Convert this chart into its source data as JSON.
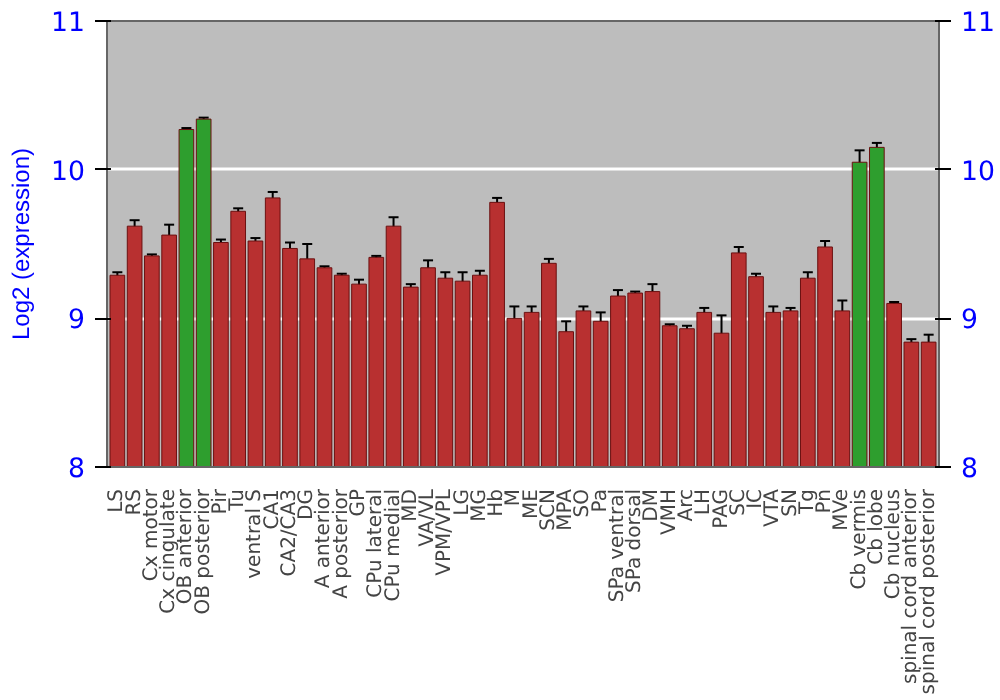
{
  "chart_data": {
    "type": "bar",
    "ylabel": "Log2 (expression)",
    "categories": [
      "LS",
      "RS",
      "Cx motor",
      "Cx cingulate",
      "OB anterior",
      "OB posterior",
      "Pir",
      "Tu",
      "ventral S",
      "CA1",
      "CA2/CA3",
      "DG",
      "A anterior",
      "A posterior",
      "GP",
      "CPu lateral",
      "CPu medial",
      "MD",
      "VA/VL",
      "VPM/VPL",
      "LG",
      "MG",
      "Hb",
      "M",
      "ME",
      "SCN",
      "MPA",
      "SO",
      "Pa",
      "SPa ventral",
      "SPa dorsal",
      "DM",
      "VMH",
      "Arc",
      "LH",
      "PAG",
      "SC",
      "IC",
      "VTA",
      "SN",
      "Tg",
      "Pn",
      "MVe",
      "Cb vermis",
      "Cb lobe",
      "Cb nucleus",
      "spinal cord anterior",
      "spinal cord posterior"
    ],
    "values": [
      9.29,
      9.62,
      9.42,
      9.56,
      10.27,
      10.34,
      9.51,
      9.72,
      9.52,
      9.81,
      9.47,
      9.4,
      9.34,
      9.29,
      9.23,
      9.41,
      9.62,
      9.21,
      9.34,
      9.27,
      9.25,
      9.29,
      9.78,
      9.0,
      9.04,
      9.37,
      8.91,
      9.05,
      8.98,
      9.15,
      9.17,
      9.18,
      8.95,
      8.93,
      9.04,
      8.9,
      9.44,
      9.28,
      9.04,
      9.05,
      9.27,
      9.48,
      9.05,
      10.05,
      10.15,
      9.1,
      8.84,
      8.84
    ],
    "errors": [
      0.02,
      0.04,
      0.01,
      0.07,
      0.01,
      0.01,
      0.02,
      0.02,
      0.02,
      0.04,
      0.04,
      0.1,
      0.01,
      0.01,
      0.03,
      0.01,
      0.06,
      0.02,
      0.05,
      0.04,
      0.06,
      0.03,
      0.03,
      0.08,
      0.04,
      0.03,
      0.07,
      0.03,
      0.06,
      0.04,
      0.01,
      0.05,
      0.01,
      0.02,
      0.03,
      0.12,
      0.04,
      0.02,
      0.04,
      0.02,
      0.04,
      0.04,
      0.07,
      0.08,
      0.03,
      0.01,
      0.02,
      0.05
    ],
    "colors": [
      "#b83030",
      "#b83030",
      "#b83030",
      "#b83030",
      "#2e9e2e",
      "#2e9e2e",
      "#b83030",
      "#b83030",
      "#b83030",
      "#b83030",
      "#b83030",
      "#b83030",
      "#b83030",
      "#b83030",
      "#b83030",
      "#b83030",
      "#b83030",
      "#b83030",
      "#b83030",
      "#b83030",
      "#b83030",
      "#b83030",
      "#b83030",
      "#b83030",
      "#b83030",
      "#b83030",
      "#b83030",
      "#b83030",
      "#b83030",
      "#b83030",
      "#b83030",
      "#b83030",
      "#b83030",
      "#b83030",
      "#b83030",
      "#b83030",
      "#b83030",
      "#b83030",
      "#b83030",
      "#b83030",
      "#b83030",
      "#b83030",
      "#b83030",
      "#2e9e2e",
      "#2e9e2e",
      "#b83030",
      "#b83030",
      "#b83030"
    ],
    "ylim": [
      8,
      11
    ],
    "yticks": [
      8,
      9,
      10,
      11
    ],
    "y2lim": [
      8,
      11
    ],
    "y2ticks": [
      8,
      9,
      10,
      11
    ],
    "grid": "y"
  }
}
